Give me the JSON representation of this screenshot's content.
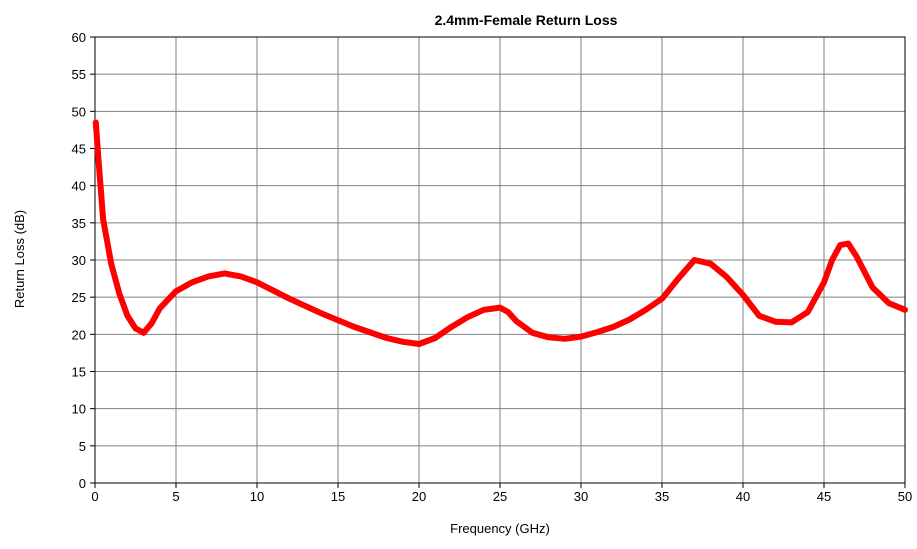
{
  "chart_data": {
    "type": "line",
    "title": "2.4mm-Female Return Loss",
    "xlabel": "Frequency (GHz)",
    "ylabel": "Return Loss (dB)",
    "xlim": [
      0,
      50
    ],
    "ylim": [
      0,
      60
    ],
    "x_ticks": [
      "0",
      "5",
      "10",
      "15",
      "20",
      "25",
      "30",
      "35",
      "40",
      "45",
      "50"
    ],
    "y_ticks": [
      "0",
      "5",
      "10",
      "15",
      "20",
      "25",
      "30",
      "35",
      "40",
      "45",
      "50",
      "55",
      "60"
    ],
    "grid": true,
    "legend": "none",
    "series": [
      {
        "color": "#ff0000",
        "x": [
          0.05,
          0.2,
          0.5,
          1.0,
          1.5,
          2.0,
          2.5,
          3.0,
          3.5,
          4.0,
          5.0,
          6.0,
          7.0,
          8.0,
          9.0,
          10.0,
          12.0,
          14.0,
          16.0,
          18.0,
          19.0,
          20.0,
          21.0,
          22.0,
          23.0,
          24.0,
          25.0,
          25.5,
          26.0,
          27.0,
          28.0,
          29.0,
          30.0,
          31.0,
          32.0,
          33.0,
          34.0,
          35.0,
          36.0,
          37.0,
          38.0,
          39.0,
          40.0,
          41.0,
          42.0,
          43.0,
          44.0,
          45.0,
          45.5,
          46.0,
          46.5,
          47.0,
          48.0,
          49.0,
          50.0
        ],
        "y": [
          48.5,
          44.0,
          35.5,
          29.5,
          25.5,
          22.5,
          20.8,
          20.2,
          21.5,
          23.5,
          25.8,
          27.0,
          27.8,
          28.2,
          27.8,
          27.0,
          24.8,
          22.8,
          21.0,
          19.5,
          19.0,
          18.7,
          19.5,
          21.0,
          22.3,
          23.3,
          23.6,
          23.0,
          21.8,
          20.2,
          19.6,
          19.4,
          19.7,
          20.3,
          21.0,
          22.0,
          23.3,
          24.8,
          27.5,
          30.0,
          29.5,
          27.7,
          25.3,
          22.5,
          21.7,
          21.6,
          23.0,
          27.0,
          30.0,
          32.0,
          32.2,
          30.5,
          26.3,
          24.2,
          23.3
        ]
      }
    ]
  }
}
